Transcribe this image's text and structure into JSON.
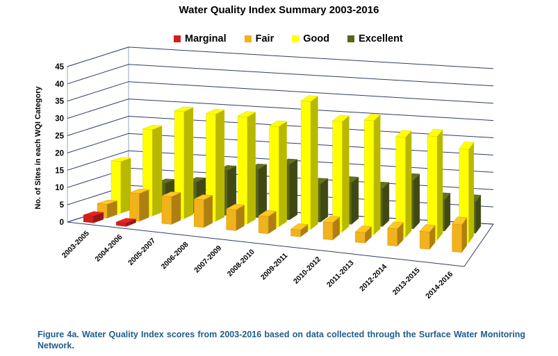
{
  "chart_data": {
    "type": "bar",
    "title": "Water Quality Index Summary 2003-2016",
    "ylabel": "No. of Sites in each WQI Category",
    "xlabel": "",
    "ylim": [
      0,
      45
    ],
    "yticks": [
      0,
      5,
      10,
      15,
      20,
      25,
      30,
      35,
      40,
      45
    ],
    "categories": [
      "2003-2005",
      "2004-2006",
      "2005-2007",
      "2006-2008",
      "2007-2009",
      "2008-2010",
      "2009-2011",
      "2010-2012",
      "2011-2013",
      "2012-2014",
      "2013-2015",
      "2014-2016"
    ],
    "series": [
      {
        "name": "Marginal",
        "values": [
          2,
          1,
          0,
          0,
          0,
          0,
          0,
          0,
          0,
          0,
          0,
          0
        ]
      },
      {
        "name": "Fair",
        "values": [
          4,
          8,
          8,
          8,
          6,
          5,
          2,
          5,
          3,
          5,
          5,
          8
        ]
      },
      {
        "name": "Good",
        "values": [
          15,
          25,
          31,
          31,
          31,
          29,
          37,
          32,
          33,
          29,
          30,
          27
        ]
      },
      {
        "name": "Excellent",
        "values": [
          0,
          8,
          9,
          13,
          14,
          16,
          11,
          12,
          11,
          14,
          9,
          9
        ]
      }
    ],
    "grid": true,
    "legend_position": "top",
    "colors": {
      "Marginal": "#D41E1E",
      "Fair": "#F2B21C",
      "Good": "#FFFF00",
      "Excellent": "#59661A"
    }
  },
  "caption": "Figure 4a. Water Quality Index scores from 2003-2016 based on data collected through the Surface Water Monitoring Network."
}
